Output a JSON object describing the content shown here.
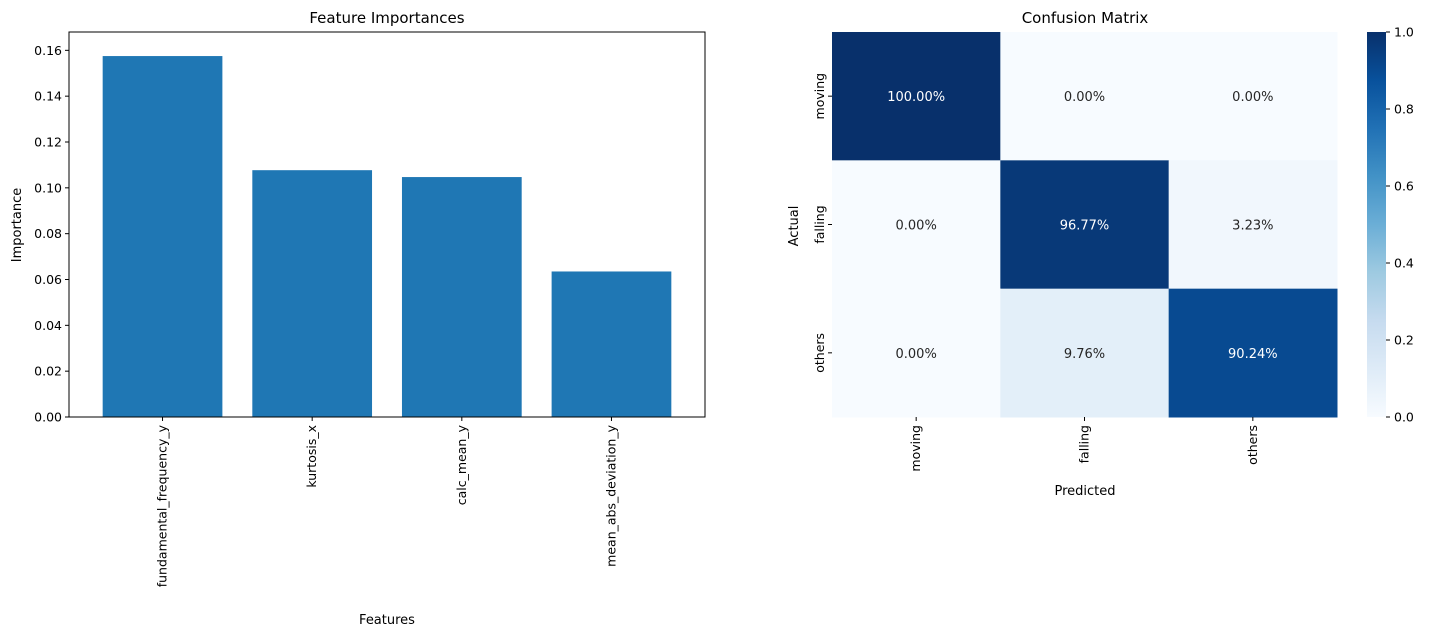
{
  "chart_data": [
    {
      "type": "bar",
      "title": "Feature Importances",
      "xlabel": "Features",
      "ylabel": "Importance",
      "categories": [
        "fundamental_frequency_y",
        "kurtosis_x",
        "calc_mean_y",
        "mean_abs_deviation_y"
      ],
      "values": [
        0.1575,
        0.1077,
        0.1047,
        0.0635
      ],
      "ylim": [
        0,
        0.168
      ],
      "yticks": [
        "0.00",
        "0.02",
        "0.04",
        "0.06",
        "0.08",
        "0.10",
        "0.12",
        "0.14",
        "0.16"
      ],
      "bar_color": "#1f77b4",
      "grid": false
    },
    {
      "type": "heatmap",
      "title": "Confusion Matrix",
      "xlabel": "Predicted",
      "ylabel": "Actual",
      "x_categories": [
        "moving",
        "falling",
        "others"
      ],
      "y_categories": [
        "moving",
        "falling",
        "others"
      ],
      "values": [
        [
          1.0,
          0.0,
          0.0
        ],
        [
          0.0,
          0.9677,
          0.0323
        ],
        [
          0.0,
          0.0976,
          0.9024
        ]
      ],
      "annotations": [
        [
          "100.00%",
          "0.00%",
          "0.00%"
        ],
        [
          "0.00%",
          "96.77%",
          "3.23%"
        ],
        [
          "0.00%",
          "9.76%",
          "90.24%"
        ]
      ],
      "colormap": "Blues",
      "colorbar_range": [
        0,
        1
      ],
      "colorbar_ticks": [
        "0.0",
        "0.2",
        "0.4",
        "0.6",
        "0.8",
        "1.0"
      ]
    }
  ]
}
